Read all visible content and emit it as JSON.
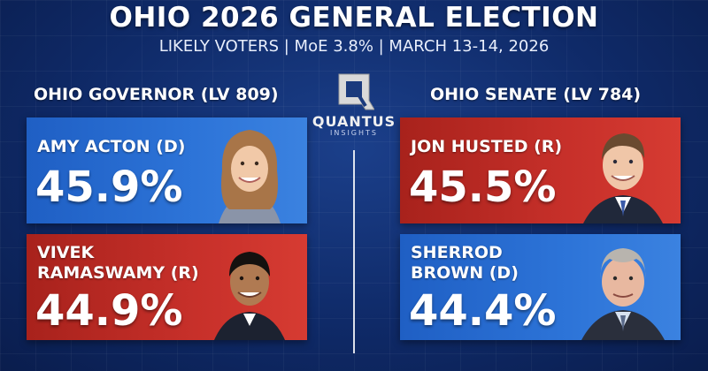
{
  "header": {
    "title": "OHIO 2026 GENERAL ELECTION",
    "subtitle": "LIKELY VOTERS | MoE 3.8% | MARCH 13-14, 2026"
  },
  "logo": {
    "name": "QUANTUS",
    "sub": "INSIGHTS",
    "icon": "q-logo-icon"
  },
  "governor": {
    "heading": "OHIO GOVERNOR (LV 809)",
    "candidates": [
      {
        "name": "AMY ACTON (D)",
        "pct": "45.9%",
        "party_color": "#2d74d8"
      },
      {
        "name_line1": "VIVEK",
        "name_line2": "RAMASWAMY (R)",
        "pct": "44.9%",
        "party_color": "#c7302a"
      }
    ]
  },
  "senate": {
    "heading": "OHIO SENATE (LV 784)",
    "candidates": [
      {
        "name": "JON HUSTED (R)",
        "pct": "45.5%",
        "party_color": "#c7302a"
      },
      {
        "name_line1": "SHERROD",
        "name_line2": "BROWN (D)",
        "pct": "44.4%",
        "party_color": "#2d74d8"
      }
    ]
  }
}
